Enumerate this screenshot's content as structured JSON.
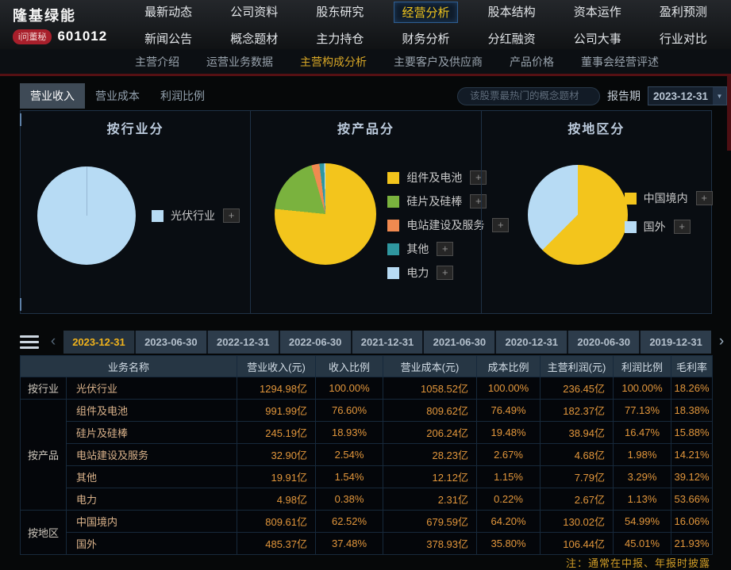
{
  "header": {
    "stock_name": "隆基绿能",
    "badge_label": "i问董秘",
    "stock_code": "601012",
    "nav_rows": [
      [
        "最新动态",
        "公司资料",
        "股东研究",
        "经营分析",
        "股本结构",
        "资本运作",
        "盈利预测"
      ],
      [
        "新闻公告",
        "概念题材",
        "主力持仓",
        "财务分析",
        "分红融资",
        "公司大事",
        "行业对比"
      ]
    ],
    "nav_selected": "经营分析",
    "subnav_items": [
      "主营介绍",
      "运营业务数据",
      "主营构成分析",
      "主要客户及供应商",
      "产品价格",
      "董事会经营评述"
    ],
    "subnav_selected": "主营构成分析"
  },
  "toolbar": {
    "view_tabs": [
      "营业收入",
      "营业成本",
      "利润比例"
    ],
    "view_tab_selected": "营业收入",
    "search_placeholder": "该股票最热门的概念题材",
    "report_label": "报告期",
    "report_value": "2023-12-31"
  },
  "icons": {
    "dropdown_arrow": "▼",
    "prev_arrow": "‹",
    "next_arrow": "›",
    "plus": "+"
  },
  "chart_data": [
    {
      "type": "pie",
      "title": "按行业分",
      "unit": "percent_of_revenue",
      "series": [
        {
          "name": "光伏行业",
          "value": 100.0,
          "color": "#b7dbf4"
        }
      ],
      "legend_position": "right"
    },
    {
      "type": "pie",
      "title": "按产品分",
      "unit": "percent_of_revenue",
      "series": [
        {
          "name": "组件及电池",
          "value": 76.6,
          "color": "#f3c51c"
        },
        {
          "name": "硅片及硅棒",
          "value": 18.93,
          "color": "#7ab23e"
        },
        {
          "name": "电站建设及服务",
          "value": 2.54,
          "color": "#f08a50"
        },
        {
          "name": "其他",
          "value": 1.54,
          "color": "#2f97a0"
        },
        {
          "name": "电力",
          "value": 0.38,
          "color": "#b7dbf4"
        }
      ],
      "legend_position": "right"
    },
    {
      "type": "pie",
      "title": "按地区分",
      "unit": "percent_of_revenue",
      "series": [
        {
          "name": "中国境内",
          "value": 62.52,
          "color": "#f3c51c"
        },
        {
          "name": "国外",
          "value": 37.48,
          "color": "#b7dbf4"
        }
      ],
      "legend_position": "right"
    }
  ],
  "period_tabs": {
    "dates": [
      "2023-12-31",
      "2023-06-30",
      "2022-12-31",
      "2022-06-30",
      "2021-12-31",
      "2021-06-30",
      "2020-12-31",
      "2020-06-30",
      "2019-12-31"
    ],
    "selected": "2023-12-31"
  },
  "table": {
    "headers": [
      "业务名称",
      "营业收入(元)",
      "收入比例",
      "营业成本(元)",
      "成本比例",
      "主营利润(元)",
      "利润比例",
      "毛利率"
    ],
    "groups": [
      {
        "label": "按行业",
        "rows": [
          [
            "光伏行业",
            "1294.98亿",
            "100.00%",
            "1058.52亿",
            "100.00%",
            "236.45亿",
            "100.00%",
            "18.26%"
          ]
        ]
      },
      {
        "label": "按产品",
        "rows": [
          [
            "组件及电池",
            "991.99亿",
            "76.60%",
            "809.62亿",
            "76.49%",
            "182.37亿",
            "77.13%",
            "18.38%"
          ],
          [
            "硅片及硅棒",
            "245.19亿",
            "18.93%",
            "206.24亿",
            "19.48%",
            "38.94亿",
            "16.47%",
            "15.88%"
          ],
          [
            "电站建设及服务",
            "32.90亿",
            "2.54%",
            "28.23亿",
            "2.67%",
            "4.68亿",
            "1.98%",
            "14.21%"
          ],
          [
            "其他",
            "19.91亿",
            "1.54%",
            "12.12亿",
            "1.15%",
            "7.79亿",
            "3.29%",
            "39.12%"
          ],
          [
            "电力",
            "4.98亿",
            "0.38%",
            "2.31亿",
            "0.22%",
            "2.67亿",
            "1.13%",
            "53.66%"
          ]
        ]
      },
      {
        "label": "按地区",
        "rows": [
          [
            "中国境内",
            "809.61亿",
            "62.52%",
            "679.59亿",
            "64.20%",
            "130.02亿",
            "54.99%",
            "16.06%"
          ],
          [
            "国外",
            "485.37亿",
            "37.48%",
            "378.93亿",
            "35.80%",
            "106.44亿",
            "45.01%",
            "21.93%"
          ]
        ]
      }
    ]
  },
  "footer_note": "注：通常在中报、年报时披露",
  "colors": {
    "accent_yellow": "#efc41d",
    "number_orange": "#e2963b",
    "badge_red": "#a81f2b",
    "divider_red": "#551013",
    "panel_border": "#1f3146"
  }
}
